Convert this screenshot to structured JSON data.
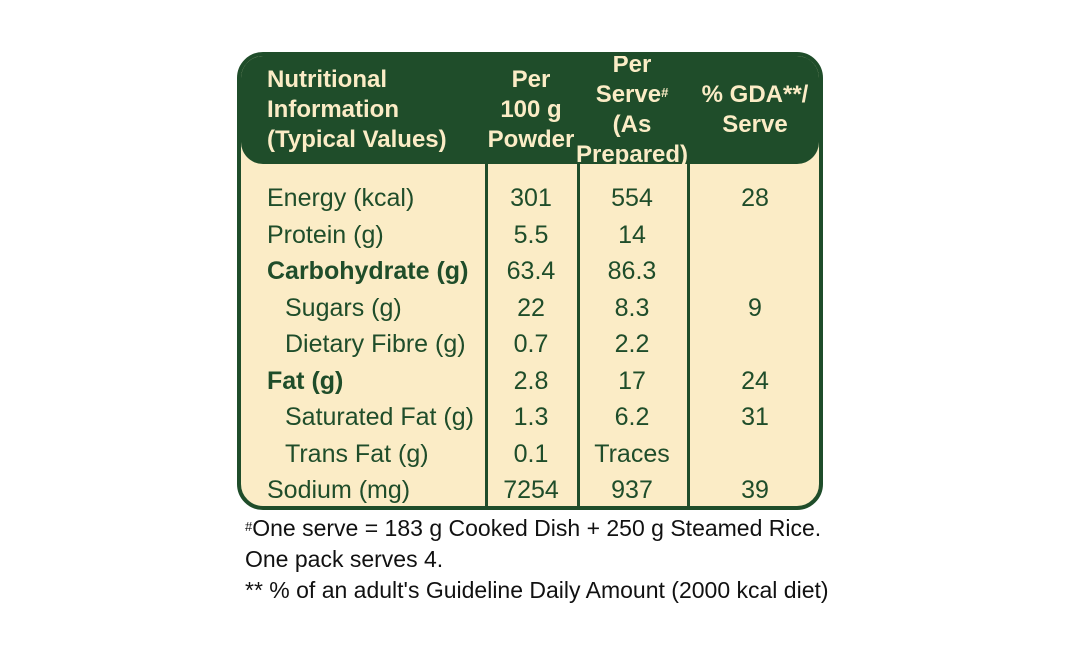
{
  "header": {
    "col0": [
      "Nutritional",
      "Information",
      "(Typical Values)"
    ],
    "col1": [
      "Per",
      "100 g",
      "Powder"
    ],
    "col2_line1": "Per",
    "col2_line2a": "Serve",
    "col2_sup": "#",
    "col2_line2b": " (As",
    "col2_line3": "Prepared)",
    "col3": [
      "% GDA**/",
      "Serve"
    ]
  },
  "rows": [
    {
      "label": "Energy (kcal)",
      "per100": "301",
      "perServe": "554",
      "gda": "28"
    },
    {
      "label": "Protein (g)",
      "per100": "5.5",
      "perServe": "14",
      "gda": ""
    },
    {
      "label": "Carbohydrate (g)",
      "per100": "63.4",
      "perServe": "86.3",
      "gda": ""
    },
    {
      "label": "Sugars (g)",
      "per100": "22",
      "perServe": "8.3",
      "gda": "9"
    },
    {
      "label": "Dietary Fibre (g)",
      "per100": "0.7",
      "perServe": "2.2",
      "gda": ""
    },
    {
      "label": "Fat (g)",
      "per100": "2.8",
      "perServe": "17",
      "gda": "24"
    },
    {
      "label": "Saturated Fat (g)",
      "per100": "1.3",
      "perServe": "6.2",
      "gda": "31"
    },
    {
      "label": "Trans Fat (g)",
      "per100": "0.1",
      "perServe": "Traces",
      "gda": ""
    },
    {
      "label": "Sodium (mg)",
      "per100": "7254",
      "perServe": "937",
      "gda": "39"
    }
  ],
  "notes": {
    "sup": "#",
    "line1": "One serve = 183 g Cooked Dish + 250 g Steamed Rice.",
    "line2": "One pack serves 4.",
    "line3": "** % of an adult's Guideline Daily Amount (2000 kcal diet)"
  },
  "colors": {
    "green": "#1f4d2a",
    "cream": "#fbecc6"
  }
}
